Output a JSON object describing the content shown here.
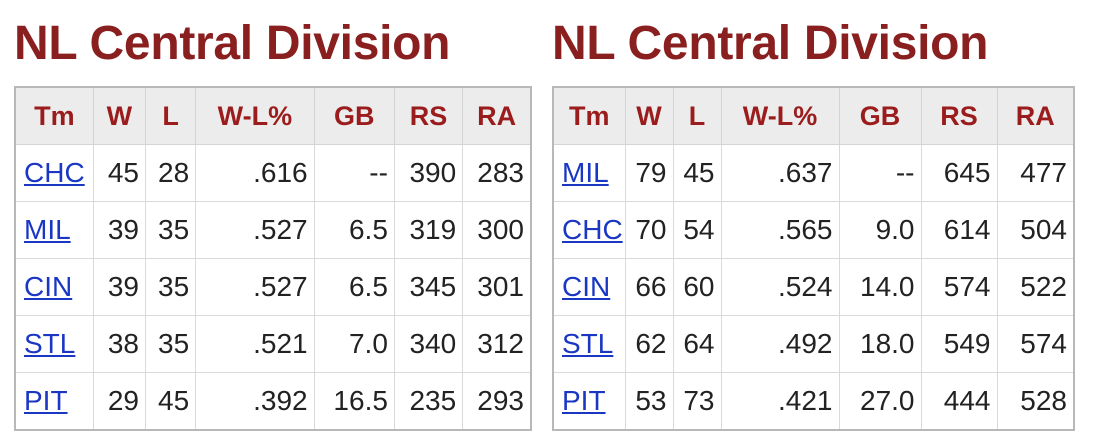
{
  "standings": [
    {
      "title": "NL Central Division",
      "columns": [
        "Tm",
        "W",
        "L",
        "W-L%",
        "GB",
        "RS",
        "RA"
      ],
      "rows": [
        [
          "CHC",
          "45",
          "28",
          ".616",
          "--",
          "390",
          "283"
        ],
        [
          "MIL",
          "39",
          "35",
          ".527",
          "6.5",
          "319",
          "300"
        ],
        [
          "CIN",
          "39",
          "35",
          ".527",
          "6.5",
          "345",
          "301"
        ],
        [
          "STL",
          "38",
          "35",
          ".521",
          "7.0",
          "340",
          "312"
        ],
        [
          "PIT",
          "29",
          "45",
          ".392",
          "16.5",
          "235",
          "293"
        ]
      ]
    },
    {
      "title": "NL Central Division",
      "columns": [
        "Tm",
        "W",
        "L",
        "W-L%",
        "GB",
        "RS",
        "RA"
      ],
      "rows": [
        [
          "MIL",
          "79",
          "45",
          ".637",
          "--",
          "645",
          "477"
        ],
        [
          "CHC",
          "70",
          "54",
          ".565",
          "9.0",
          "614",
          "504"
        ],
        [
          "CIN",
          "66",
          "60",
          ".524",
          "14.0",
          "574",
          "522"
        ],
        [
          "STL",
          "62",
          "64",
          ".492",
          "18.0",
          "549",
          "574"
        ],
        [
          "PIT",
          "53",
          "73",
          ".421",
          "27.0",
          "444",
          "528"
        ]
      ]
    }
  ],
  "colors": {
    "title": "#8a1f1f",
    "header_text": "#9b1c1c",
    "header_bg": "#ececec",
    "link": "#1a37c4"
  }
}
